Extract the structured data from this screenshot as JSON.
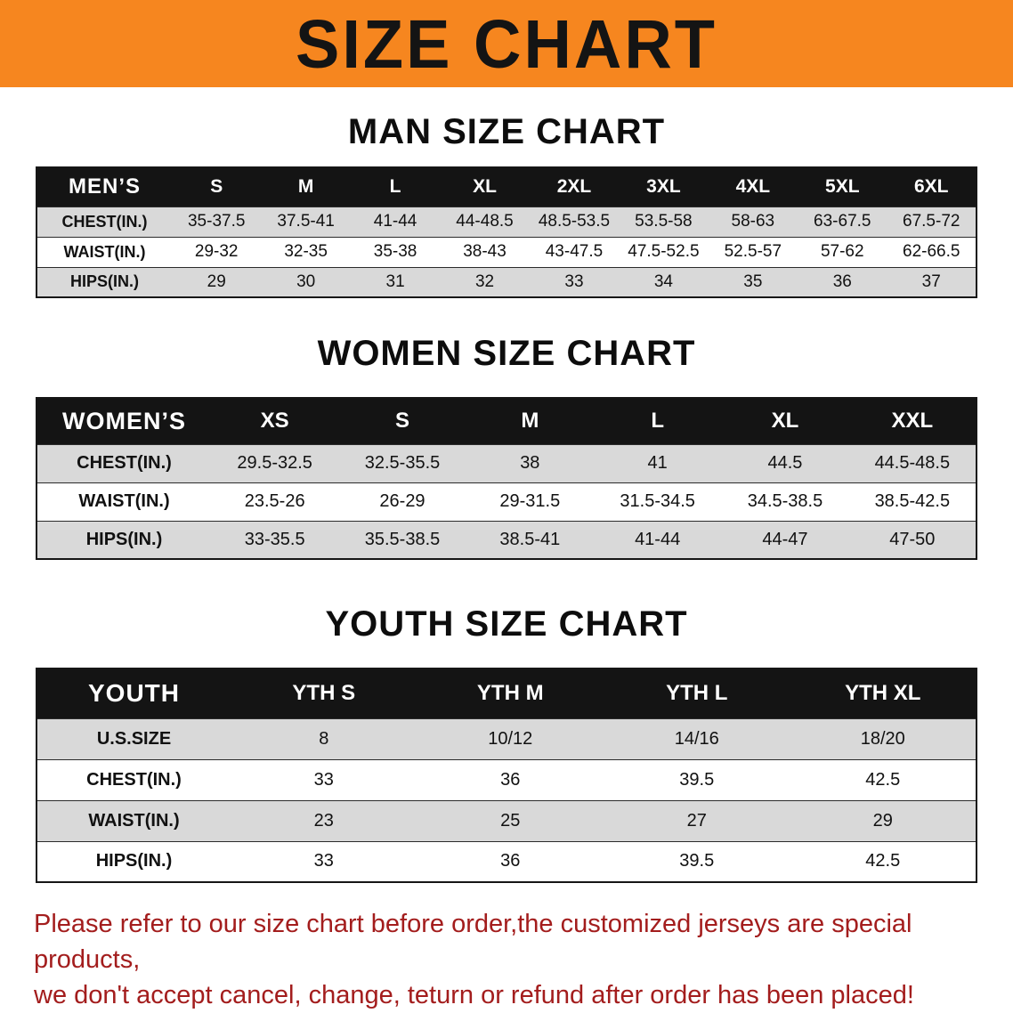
{
  "colors": {
    "banner_bg": "#f6861f",
    "header_bar_bg": "#141414",
    "row_shade": "#d9d9d9",
    "disclaimer_text": "#a31d1d"
  },
  "banner": {
    "title": "SIZE CHART"
  },
  "sections": [
    {
      "id": "men",
      "title": "MAN SIZE CHART",
      "header_label": "MEN’S",
      "columns": [
        "S",
        "M",
        "L",
        "XL",
        "2XL",
        "3XL",
        "4XL",
        "5XL",
        "6XL"
      ],
      "rows": [
        {
          "label": "CHEST(IN.)",
          "values": [
            "35-37.5",
            "37.5-41",
            "41-44",
            "44-48.5",
            "48.5-53.5",
            "53.5-58",
            "58-63",
            "63-67.5",
            "67.5-72"
          ]
        },
        {
          "label": "WAIST(IN.)",
          "values": [
            "29-32",
            "32-35",
            "35-38",
            "38-43",
            "43-47.5",
            "47.5-52.5",
            "52.5-57",
            "57-62",
            "62-66.5"
          ]
        },
        {
          "label": "HIPS(IN.)",
          "values": [
            "29",
            "30",
            "31",
            "32",
            "33",
            "34",
            "35",
            "36",
            "37"
          ]
        }
      ]
    },
    {
      "id": "women",
      "title": "WOMEN SIZE CHART",
      "header_label": "WOMEN’S",
      "columns": [
        "XS",
        "S",
        "M",
        "L",
        "XL",
        "XXL"
      ],
      "rows": [
        {
          "label": "CHEST(IN.)",
          "values": [
            "29.5-32.5",
            "32.5-35.5",
            "38",
            "41",
            "44.5",
            "44.5-48.5"
          ]
        },
        {
          "label": "WAIST(IN.)",
          "values": [
            "23.5-26",
            "26-29",
            "29-31.5",
            "31.5-34.5",
            "34.5-38.5",
            "38.5-42.5"
          ]
        },
        {
          "label": "HIPS(IN.)",
          "values": [
            "33-35.5",
            "35.5-38.5",
            "38.5-41",
            "41-44",
            "44-47",
            "47-50"
          ]
        }
      ]
    },
    {
      "id": "youth",
      "title": "YOUTH SIZE CHART",
      "header_label": "YOUTH",
      "columns": [
        "YTH S",
        "YTH M",
        "YTH L",
        "YTH XL"
      ],
      "rows": [
        {
          "label": "U.S.SIZE",
          "values": [
            "8",
            "10/12",
            "14/16",
            "18/20"
          ]
        },
        {
          "label": "CHEST(IN.)",
          "values": [
            "33",
            "36",
            "39.5",
            "42.5"
          ]
        },
        {
          "label": "WAIST(IN.)",
          "values": [
            "23",
            "25",
            "27",
            "29"
          ]
        },
        {
          "label": "HIPS(IN.)",
          "values": [
            "33",
            "36",
            "39.5",
            "42.5"
          ]
        }
      ]
    }
  ],
  "footer": {
    "line1": "Please refer to our size chart before order,the customized jerseys are special products,",
    "line2": "we don't accept cancel, change, teturn or refund after order has been placed!"
  }
}
